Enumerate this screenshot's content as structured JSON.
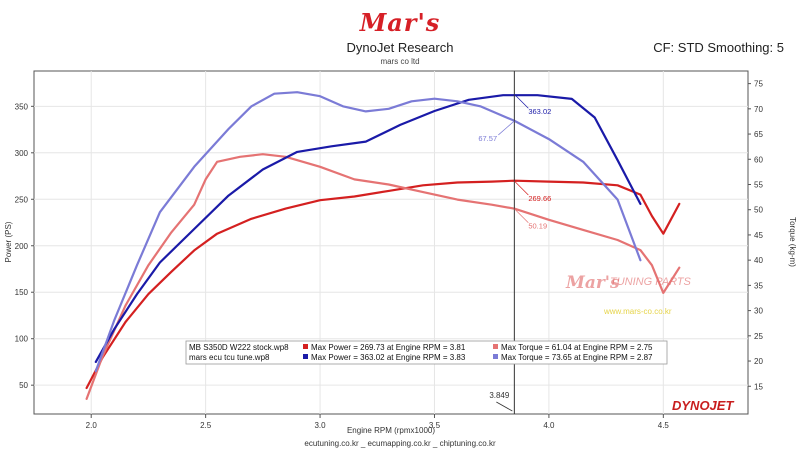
{
  "header": {
    "logo_text": "Mar's",
    "title": "DynoJet Research",
    "subtitle": "mars co ltd",
    "cf_text": "CF: STD Smoothing: 5"
  },
  "footer": "ecutuning.co.kr _ ecumapping.co.kr _ chiptuning.co.kr",
  "watermark": {
    "logo": "Mar's",
    "text": "TUNING PARTS",
    "url": "www.mars-co.co.kr"
  },
  "brand": "DYNOJET",
  "chart_data": {
    "type": "line",
    "xlabel": "Engine RPM (rpmx1000)",
    "ylabel_left": "Power (PS)",
    "ylabel_right": "Torque (kg-m)",
    "xlim": [
      1.75,
      4.87
    ],
    "ylim_left": [
      19,
      388
    ],
    "ylim_right": [
      9.5,
      77.5
    ],
    "x_ticks": [
      2.0,
      2.5,
      3.0,
      3.5,
      4.0,
      4.5
    ],
    "x_tick_labels": [
      "2.0",
      "2.5",
      "3.0",
      "3.5",
      "4.0",
      "4.5"
    ],
    "y_left_ticks": [
      50,
      100,
      150,
      200,
      250,
      300,
      350
    ],
    "y_right_ticks": [
      15,
      20,
      25,
      30,
      35,
      40,
      45,
      50,
      55,
      60,
      65,
      70,
      75
    ],
    "cursor": {
      "x": 3.849,
      "label": "3.849"
    },
    "colors": {
      "stock_power": "#d42020",
      "stock_torque": "#e57373",
      "tune_power": "#1a1aa8",
      "tune_torque": "#7b7bd6"
    },
    "series": [
      {
        "key": "stock_power",
        "axis": "left",
        "x": [
          1.98,
          2.05,
          2.15,
          2.25,
          2.35,
          2.45,
          2.55,
          2.7,
          2.85,
          3.0,
          3.15,
          3.3,
          3.45,
          3.6,
          3.75,
          3.85,
          4.0,
          4.15,
          4.3,
          4.4,
          4.45,
          4.5,
          4.57
        ],
        "y": [
          47,
          80,
          118,
          148,
          172,
          195,
          213,
          229,
          240,
          249,
          253,
          259,
          265,
          268,
          269,
          270,
          269,
          268,
          265,
          255,
          232,
          213,
          245
        ]
      },
      {
        "key": "stock_torque",
        "axis": "right",
        "x": [
          1.98,
          2.05,
          2.15,
          2.25,
          2.35,
          2.45,
          2.5,
          2.55,
          2.65,
          2.75,
          2.85,
          3.0,
          3.15,
          3.3,
          3.45,
          3.6,
          3.75,
          3.85,
          4.0,
          4.15,
          4.3,
          4.4,
          4.45,
          4.5,
          4.57
        ],
        "y": [
          12.5,
          21,
          31,
          39,
          45.5,
          51,
          56,
          59.5,
          60.5,
          61,
          60.5,
          58.5,
          56,
          55,
          53.5,
          52,
          51,
          50.2,
          48,
          46,
          44,
          42,
          39,
          33.5,
          38.5
        ]
      },
      {
        "key": "tune_power",
        "axis": "left",
        "x": [
          2.02,
          2.1,
          2.2,
          2.3,
          2.45,
          2.6,
          2.75,
          2.9,
          3.05,
          3.2,
          3.35,
          3.5,
          3.65,
          3.8,
          3.95,
          4.1,
          4.2,
          4.3,
          4.4
        ],
        "y": [
          75,
          110,
          148,
          182,
          218,
          254,
          282,
          301,
          307,
          312,
          330,
          345,
          357,
          362,
          362,
          358,
          338,
          292,
          245
        ]
      },
      {
        "key": "tune_torque",
        "axis": "right",
        "x": [
          2.02,
          2.1,
          2.2,
          2.3,
          2.45,
          2.6,
          2.7,
          2.8,
          2.9,
          3.0,
          3.1,
          3.2,
          3.3,
          3.4,
          3.5,
          3.6,
          3.7,
          3.85,
          4.0,
          4.15,
          4.3,
          4.4
        ],
        "y": [
          18,
          28,
          39,
          49.5,
          58.5,
          66,
          70.5,
          73,
          73.3,
          72.5,
          70.5,
          69.5,
          70,
          71.5,
          72,
          71.5,
          70.5,
          67.6,
          64,
          59.5,
          52,
          40
        ]
      }
    ],
    "annotations": [
      {
        "series": "tune_power",
        "x": 3.849,
        "y": 363.0,
        "label": "363.02"
      },
      {
        "series": "tune_torque",
        "x": 3.849,
        "y": 67.6,
        "label": "67.57"
      },
      {
        "series": "stock_power",
        "x": 3.849,
        "y": 269.7,
        "label": "269.66"
      },
      {
        "series": "stock_torque",
        "x": 3.849,
        "y": 50.2,
        "label": "50.19"
      }
    ],
    "legend": {
      "position": "bottom-center",
      "rows": [
        {
          "file": "MB S350D W222 stock.wp8",
          "power": "Max Power = 269.73 at Engine RPM = 3.81",
          "torque": "Max Torque = 61.04 at Engine RPM = 2.75",
          "power_key": "stock_power",
          "torque_key": "stock_torque"
        },
        {
          "file": "mars ecu tcu tune.wp8",
          "power": "Max Power = 363.02 at Engine RPM = 3.83",
          "torque": "Max Torque = 73.65 at Engine RPM = 2.87",
          "power_key": "tune_power",
          "torque_key": "tune_torque"
        }
      ]
    }
  }
}
